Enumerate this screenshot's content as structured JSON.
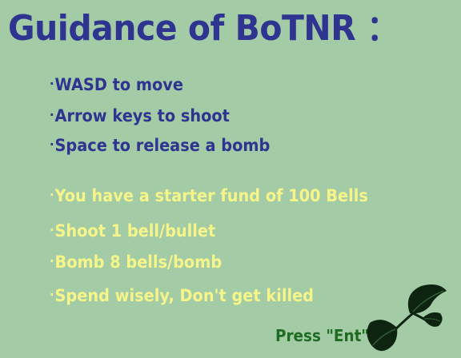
{
  "screen": {
    "title": "Guidance of BoTNR ：",
    "controls": [
      "WASD to move",
      "Arrow keys to shoot",
      "Space to release a bomb"
    ],
    "rules": [
      "You have a starter fund of 100 Bells",
      "Shoot 1 bell/bullet",
      "Bomb 8 bells/bomb",
      "Spend wisely, Don't get killed"
    ],
    "prompt": "Press \"Ent\""
  },
  "icons": {
    "bullet": "·",
    "decoration": "leaf-cluster-icon"
  },
  "colors": {
    "background": "#a3cba6",
    "title": "#2e3490",
    "controls_text": "#2e3490",
    "rules_text": "#f6f58a",
    "prompt_text": "#1e6b22",
    "leaf": "#0d2410"
  }
}
